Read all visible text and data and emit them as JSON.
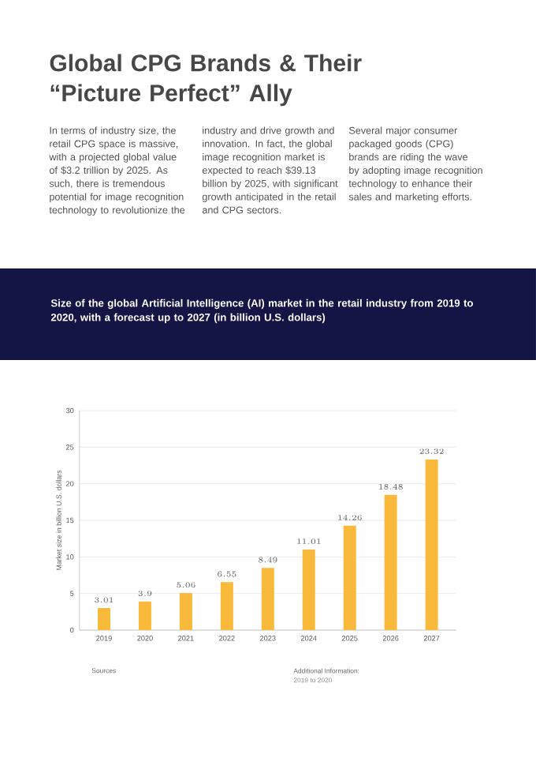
{
  "chart_data": {
    "type": "bar",
    "title": "Global CPG Brands & Their “Picture Perfect” Ally",
    "subtitle": "Size of the global Artificial Intelligence (AI) market in the retail industry from 2019 to 2020, with a forecast up to 2027 (in billion U.S. dollars)",
    "ylabel": "Market size in billion U.S. dollars",
    "categories": [
      "2019",
      "2020",
      "2021",
      "2022",
      "2023",
      "2024",
      "2025",
      "2026",
      "2027"
    ],
    "values": [
      3.01,
      3.9,
      5.06,
      6.55,
      8.49,
      11.01,
      14.26,
      18.48,
      23.32
    ],
    "color": "#f9b93a",
    "ylim": [
      0,
      30
    ],
    "yticks": [
      0,
      5,
      10,
      15,
      20,
      25,
      30
    ],
    "grid": "y",
    "data_labels": true,
    "annotations": [
      "In terms of industry size, the retail CPG space is massive, with a projected global value of $3.2 trillion by 2025. As such, there is tremendous potential for image recognition technology to revolutionize the",
      "industry and drive growth and innovation. In fact, the global image recognition market is expected to reach $39.13 billion by 2025, with significant growth anticipated in the retail and CPG sectors.",
      "Several major consumer packaged goods (CPG) brands are riding the wave by adopting image recognition technology to enhance their sales and marketing efforts.",
      "Sources",
      "Additional Information:",
      "2019 to 2020"
    ]
  }
}
